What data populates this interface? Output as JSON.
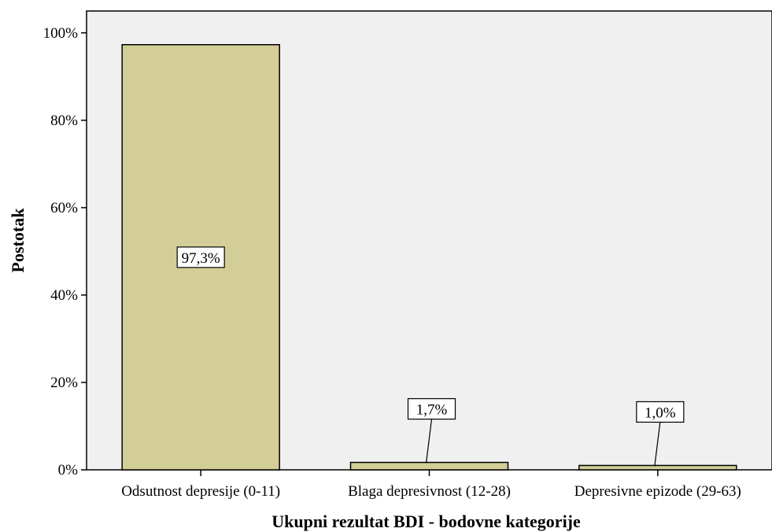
{
  "chart_data": {
    "type": "bar",
    "categories": [
      "Odsutnost depresije (0-11)",
      "Blaga depresivnost (12-28)",
      "Depresivne epizode (29-63)"
    ],
    "values": [
      97.3,
      1.7,
      1.0
    ],
    "data_labels": [
      "97,3%",
      "1,7%",
      "1,0%"
    ],
    "xlabel": "Ukupni rezultat BDI - bodovne kategorije",
    "ylabel": "Postotak",
    "ylim": [
      0,
      105
    ],
    "yticks": [
      0,
      20,
      40,
      60,
      80,
      100
    ],
    "ytick_labels": [
      "0%",
      "20%",
      "40%",
      "60%",
      "80%",
      "100%"
    ],
    "grid": false,
    "colors": {
      "bar_fill": "#d3ce97",
      "plot_background": "#f0f0f0",
      "outline": "#000000"
    }
  }
}
